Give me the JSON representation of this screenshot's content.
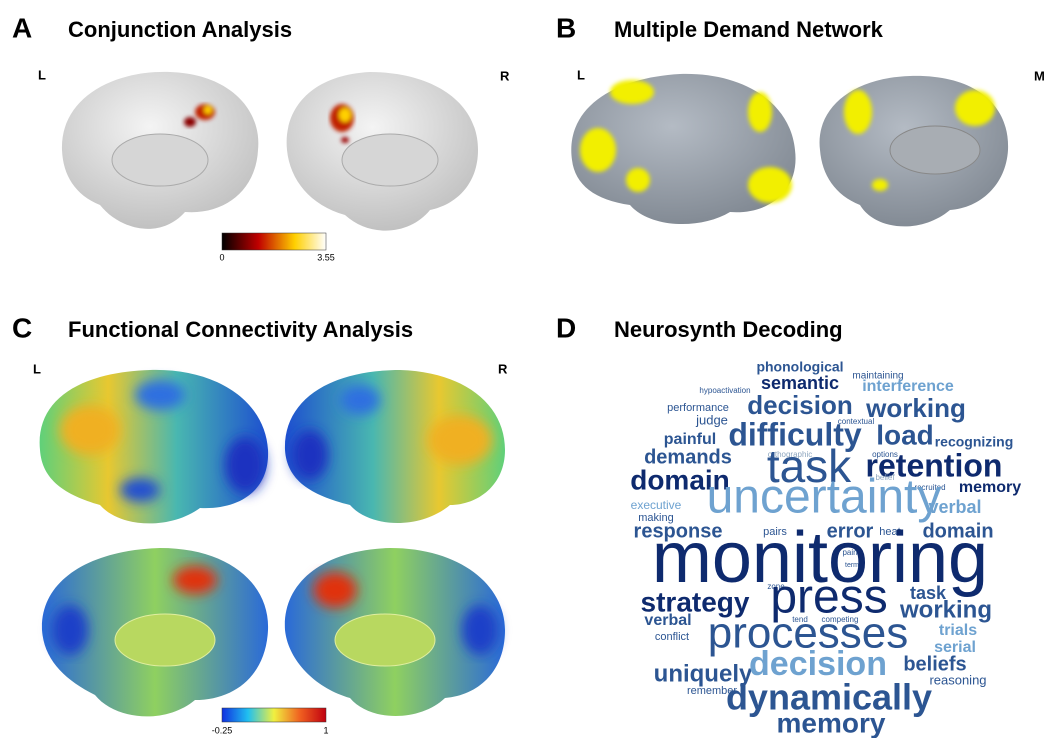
{
  "panels": [
    {
      "letter": "A",
      "title": "Conjunction Analysis",
      "left_label": "L",
      "right_label": "R",
      "colorbar": {
        "min": "0",
        "max": "3.55"
      }
    },
    {
      "letter": "B",
      "title": "Multiple Demand Network",
      "left_label": "L",
      "right_label": "M"
    },
    {
      "letter": "C",
      "title": "Functional Connectivity Analysis",
      "left_label": "L",
      "right_label": "R",
      "colorbar": {
        "min": "-0.25",
        "max": "1"
      }
    },
    {
      "letter": "D",
      "title": "Neurosynth Decoding",
      "words": [
        "phonological",
        "maintaining",
        "hypoactivation",
        "semantic",
        "interference",
        "performance",
        "decision",
        "working",
        "judge",
        "contextual",
        "painful",
        "difficulty",
        "load",
        "recognizing",
        "orthographic",
        "options",
        "demands",
        "task",
        "retention",
        "domain",
        "belief",
        "recruited",
        "memory",
        "executive",
        "uncertainty",
        "verbal",
        "making",
        "response",
        "pairs",
        "error",
        "heat",
        "domain",
        "monitoring",
        "pain",
        "term",
        "zone",
        "strategy",
        "press",
        "task",
        "working",
        "verbal",
        "tend",
        "competing",
        "conflict",
        "processes",
        "trials",
        "serial",
        "uniquely",
        "decision",
        "beliefs",
        "reasoning",
        "remember",
        "dynamically",
        "memory"
      ]
    }
  ]
}
